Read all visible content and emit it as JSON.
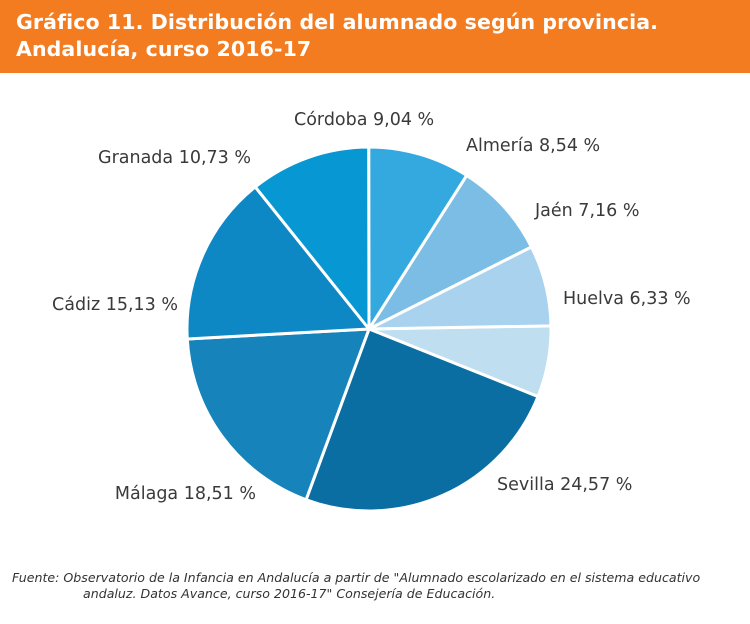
{
  "header": {
    "title": "Gráfico 11. Distribución del alumnado según provincia. Andalucía, curso 2016-17",
    "background": "#f47c20"
  },
  "chart_data": {
    "type": "pie",
    "title": "Gráfico 11. Distribución del alumnado según provincia. Andalucía, curso 2016-17",
    "unit": "%",
    "categories": [
      "Huelva",
      "Sevilla",
      "Málaga",
      "Cádiz",
      "Granada",
      "Córdoba",
      "Almería",
      "Jaén"
    ],
    "values": [
      6.33,
      24.57,
      18.51,
      15.13,
      10.73,
      9.04,
      8.54,
      7.16
    ],
    "labels": [
      "Huelva 6,33 %",
      "Sevilla 24,57 %",
      "Málaga 18,51 %",
      "Cádiz 15,13 %",
      "Granada 10,73 %",
      "Córdoba 9,04 %",
      "Almería 8,54 %",
      "Jaén 7,16 %"
    ],
    "colors": [
      "#bfdef0",
      "#0a6ea3",
      "#1684bb",
      "#0d88c4",
      "#0798d3",
      "#33a9df",
      "#7cbde5",
      "#a8d2ed"
    ],
    "legend": "none"
  },
  "source": {
    "line1": "Fuente: Observatorio de la Infancia en Andalucía a partir de \"Alumnado escolarizado en el sistema educativo",
    "line2": "andaluz. Datos Avance, curso 2016-17\" Consejería de Educación."
  }
}
